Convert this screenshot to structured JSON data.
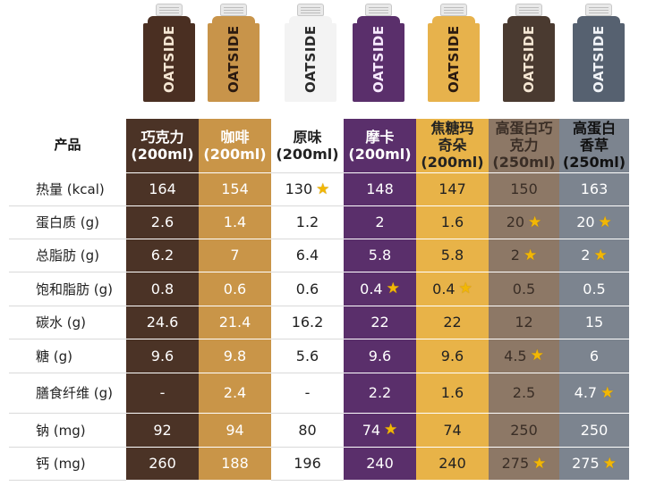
{
  "brand": "OATSIDE",
  "header": {
    "product_label": "产品",
    "columns": [
      {
        "name": "巧克力",
        "size": "(200ml)"
      },
      {
        "name": "咖啡",
        "size": "(200ml)"
      },
      {
        "name": "原味",
        "size": "(200ml)"
      },
      {
        "name": "摩卡",
        "size": "(200ml)"
      },
      {
        "name": "焦糖玛\n奇朵",
        "size": "(200ml)"
      },
      {
        "name": "高蛋白巧\n克力",
        "size": "(250ml)"
      },
      {
        "name": "高蛋白\n香草",
        "size": "(250ml)"
      }
    ]
  },
  "colors": {
    "chocolate": "#4b3326",
    "coffee": "#c99548",
    "original": "#ffffff",
    "mocha": "#5a2f6b",
    "caramel": "#e8b348",
    "protein_chocolate": "#8d7866",
    "protein_vanilla": "#7c848f",
    "star": "#f2b705"
  },
  "rows": [
    {
      "label": "热量 (kcal)",
      "values": [
        "164",
        "154",
        "130",
        "148",
        "147",
        "150",
        "163"
      ],
      "stars": [
        false,
        false,
        true,
        false,
        false,
        false,
        false
      ]
    },
    {
      "label": "蛋白质 (g)",
      "values": [
        "2.6",
        "1.4",
        "1.2",
        "2",
        "1.6",
        "20",
        "20"
      ],
      "stars": [
        false,
        false,
        false,
        false,
        false,
        true,
        true
      ]
    },
    {
      "label": "总脂肪 (g)",
      "values": [
        "6.2",
        "7",
        "6.4",
        "5.8",
        "5.8",
        "2",
        "2"
      ],
      "stars": [
        false,
        false,
        false,
        false,
        false,
        true,
        true
      ]
    },
    {
      "label": "饱和脂肪 (g)",
      "values": [
        "0.8",
        "0.6",
        "0.6",
        "0.4",
        "0.4",
        "0.5",
        "0.5"
      ],
      "stars": [
        false,
        false,
        false,
        true,
        true,
        false,
        false
      ]
    },
    {
      "label": "碳水 (g)",
      "values": [
        "24.6",
        "21.4",
        "16.2",
        "22",
        "22",
        "12",
        "15"
      ],
      "stars": [
        false,
        false,
        false,
        false,
        false,
        false,
        false
      ]
    },
    {
      "label": "糖 (g)",
      "values": [
        "9.6",
        "9.8",
        "5.6",
        "9.6",
        "9.6",
        "4.5",
        "6"
      ],
      "stars": [
        false,
        false,
        false,
        false,
        false,
        true,
        false
      ]
    },
    {
      "label": "膳食纤维 (g)",
      "values": [
        "-",
        "2.4",
        "-",
        "2.2",
        "1.6",
        "2.5",
        "4.7"
      ],
      "stars": [
        false,
        false,
        false,
        false,
        false,
        false,
        true
      ]
    },
    {
      "label": "钠 (mg)",
      "values": [
        "92",
        "94",
        "80",
        "74",
        "74",
        "250",
        "250"
      ],
      "stars": [
        false,
        false,
        false,
        true,
        false,
        false,
        false
      ]
    },
    {
      "label": "钙 (mg)",
      "values": [
        "260",
        "188",
        "196",
        "240",
        "240",
        "275",
        "275"
      ],
      "stars": [
        false,
        false,
        false,
        false,
        false,
        true,
        true
      ]
    }
  ],
  "star_glyph": "★"
}
